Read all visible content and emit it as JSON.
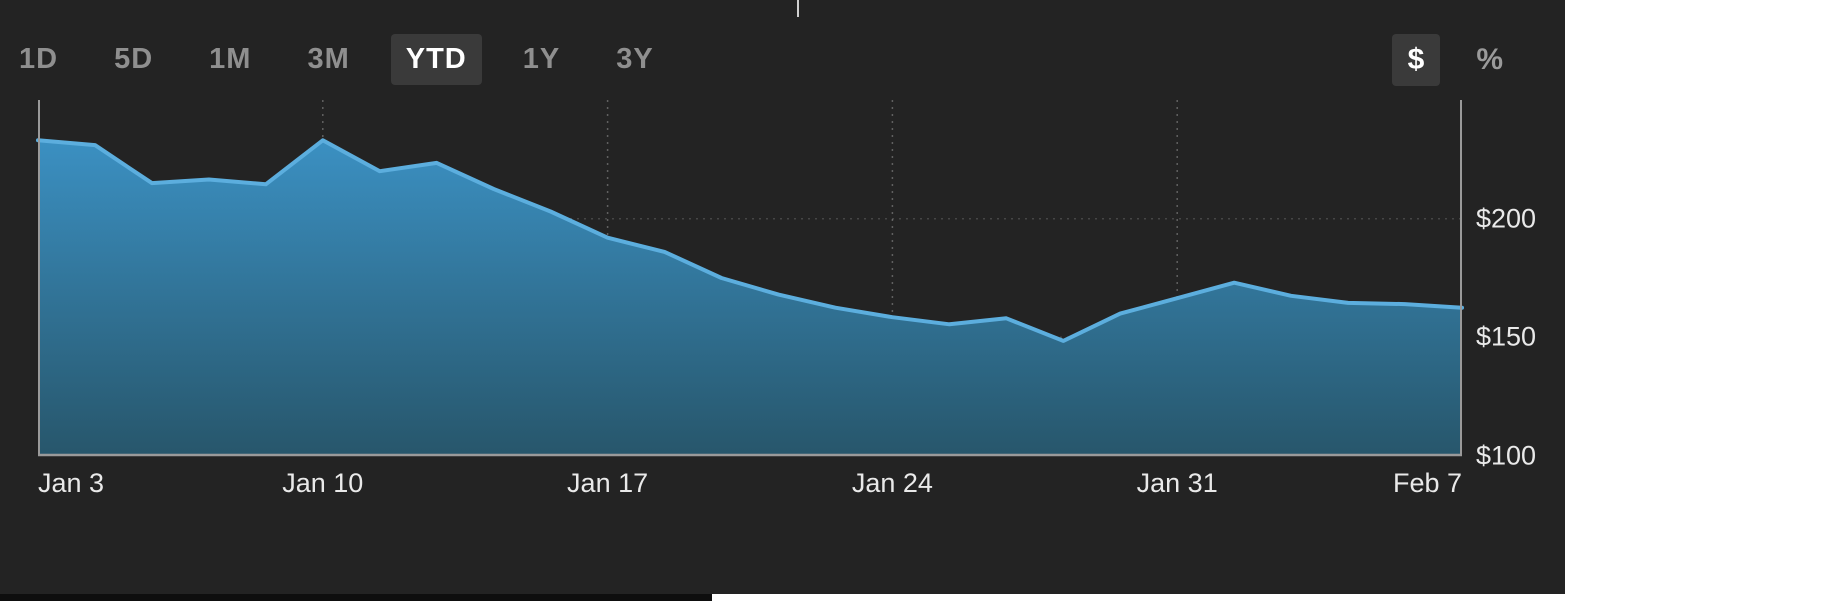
{
  "toolbar": {
    "ranges": [
      {
        "label": "1D",
        "active": false
      },
      {
        "label": "5D",
        "active": false
      },
      {
        "label": "1M",
        "active": false
      },
      {
        "label": "3M",
        "active": false
      },
      {
        "label": "YTD",
        "active": true
      },
      {
        "label": "1Y",
        "active": false
      },
      {
        "label": "3Y",
        "active": false
      }
    ],
    "units": [
      {
        "label": "$",
        "active": true
      },
      {
        "label": "%",
        "active": false
      }
    ]
  },
  "chart_data": {
    "type": "area",
    "x": [
      "Jan 3",
      "Jan 4",
      "Jan 5",
      "Jan 6",
      "Jan 7",
      "Jan 10",
      "Jan 11",
      "Jan 12",
      "Jan 13",
      "Jan 14",
      "Jan 17",
      "Jan 18",
      "Jan 19",
      "Jan 20",
      "Jan 21",
      "Jan 24",
      "Jan 25",
      "Jan 26",
      "Jan 27",
      "Jan 28",
      "Jan 31",
      "Feb 1",
      "Feb 2",
      "Feb 3",
      "Feb 4",
      "Feb 7"
    ],
    "values": [
      233,
      231,
      215,
      216.5,
      214.5,
      233,
      220,
      223.5,
      212.5,
      203,
      192,
      186,
      175,
      168,
      162.5,
      158.5,
      155.5,
      158,
      148.5,
      160,
      166.5,
      173,
      167.5,
      164.5,
      164,
      162.5
    ],
    "x_tick_labels": [
      "Jan 3",
      "Jan 10",
      "Jan 17",
      "Jan 24",
      "Jan 31",
      "Feb 7"
    ],
    "x_tick_indices": [
      0,
      5,
      10,
      15,
      20,
      25
    ],
    "x_gridline_indices": [
      5,
      10,
      15,
      20
    ],
    "y_tick_labels": [
      "$200",
      "$150",
      "$100"
    ],
    "y_gridlines": [
      200,
      150,
      100
    ],
    "ylim": [
      100,
      250
    ],
    "legend": "none",
    "grid": "dotted",
    "colors": {
      "line": "#5caede",
      "fill_top": "#3b90c2",
      "fill_bottom": "#27566b",
      "background": "#232323",
      "axis": "#9a9a9a",
      "label": "#e9e9e9",
      "active_button_bg": "#3a3a3a",
      "muted_text": "#8f8f8f"
    }
  }
}
